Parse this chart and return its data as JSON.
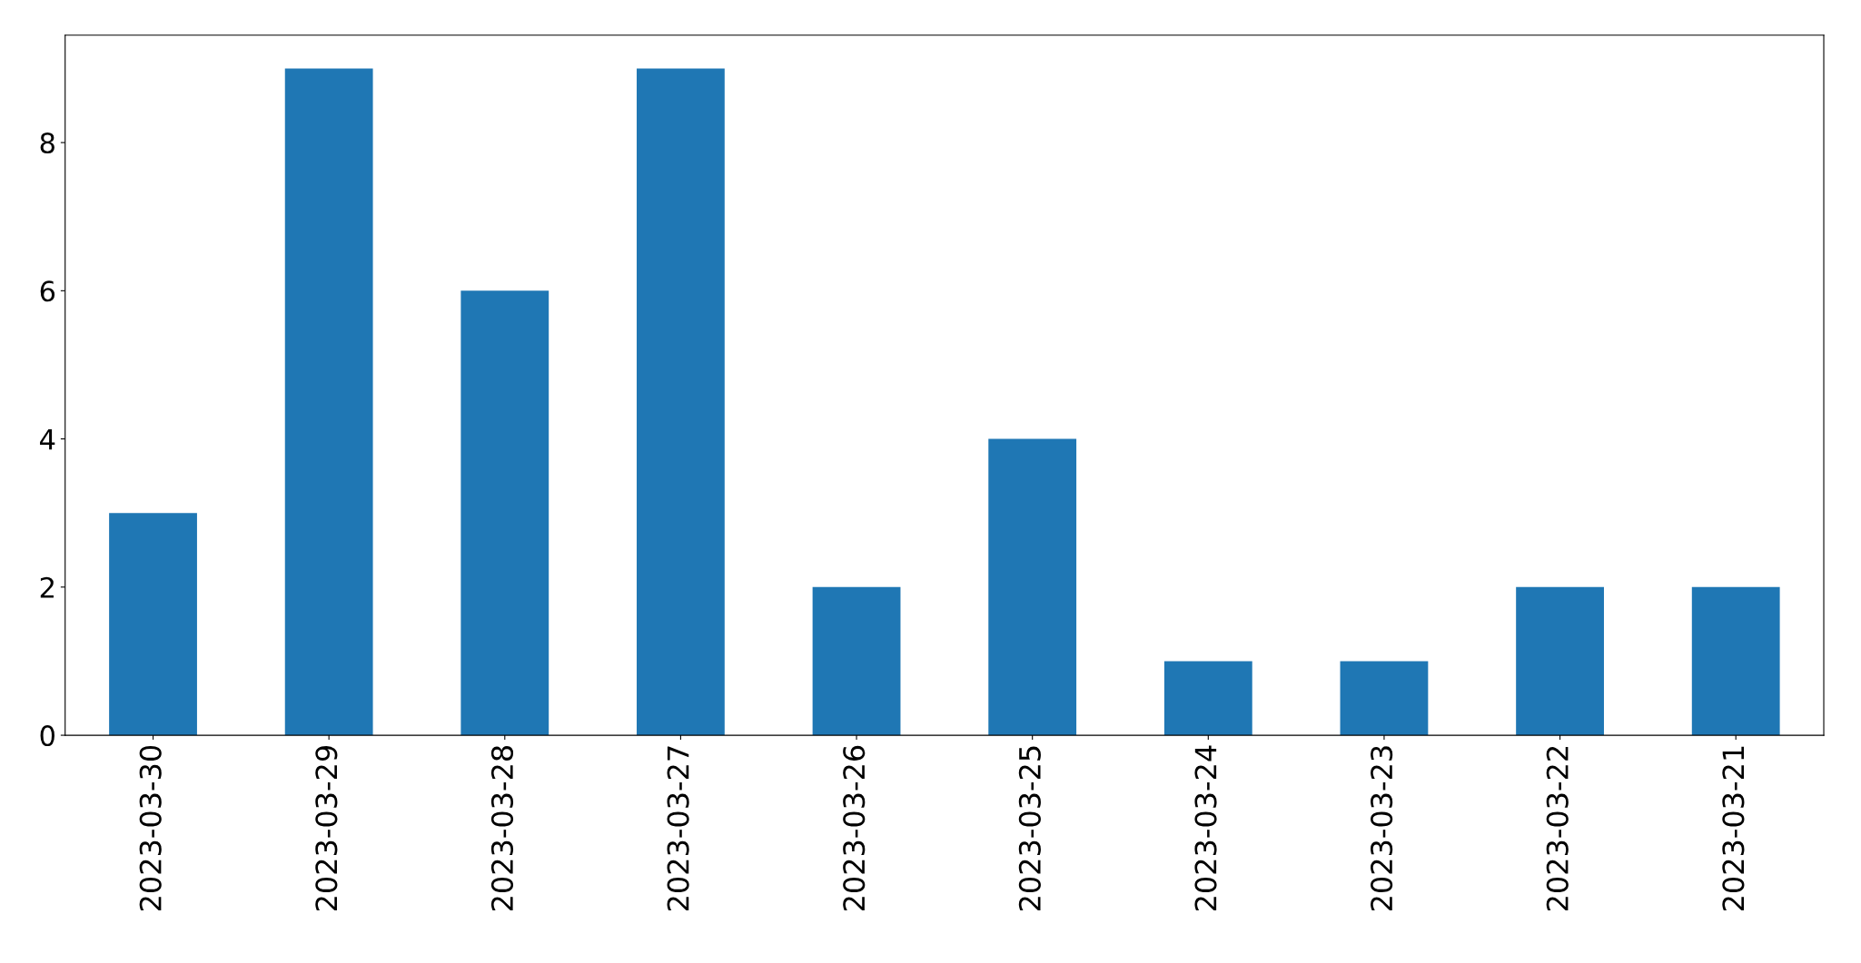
{
  "chart_data": {
    "type": "bar",
    "categories": [
      "2023-03-30",
      "2023-03-29",
      "2023-03-28",
      "2023-03-27",
      "2023-03-26",
      "2023-03-25",
      "2023-03-24",
      "2023-03-23",
      "2023-03-22",
      "2023-03-21"
    ],
    "values": [
      3,
      9,
      6,
      9,
      2,
      4,
      1,
      1,
      2,
      2
    ],
    "color": "#1f77b4",
    "ylim": [
      0,
      9.45
    ],
    "yticks": [
      0,
      2,
      4,
      6,
      8
    ],
    "grid": false
  }
}
